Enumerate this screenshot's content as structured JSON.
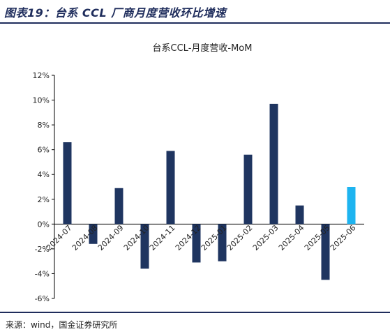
{
  "header": {
    "title": "图表19：台系 CCL 厂商月度营收环比增速"
  },
  "footer": {
    "source": "来源：wind，国金证券研究所"
  },
  "colors": {
    "primary_bar": "#1f3560",
    "highlight_bar": "#1eb4f0",
    "rule": "#1f2d5c"
  },
  "chart_data": {
    "type": "bar",
    "title": "台系CCL-月度营收-MoM",
    "categories": [
      "2024-07",
      "2024-08",
      "2024-09",
      "2024-10",
      "2024-11",
      "2024-12",
      "2025-01",
      "2025-02",
      "2025-03",
      "2025-04",
      "2025-05",
      "2025-06"
    ],
    "values": [
      6.6,
      -1.6,
      2.9,
      -3.6,
      5.9,
      -3.1,
      -3.0,
      5.6,
      9.7,
      1.5,
      -4.5,
      3.0
    ],
    "highlight_index": 11,
    "ylim": [
      -6,
      12
    ],
    "yticks": [
      -6,
      -4,
      -2,
      0,
      2,
      4,
      6,
      8,
      10,
      12
    ],
    "ytick_labels": [
      "-6%",
      "-4%",
      "-2%",
      "0%",
      "2%",
      "4%",
      "6%",
      "8%",
      "10%",
      "12%"
    ],
    "xlabel": "",
    "ylabel": "",
    "grid": false,
    "legend": "none"
  }
}
